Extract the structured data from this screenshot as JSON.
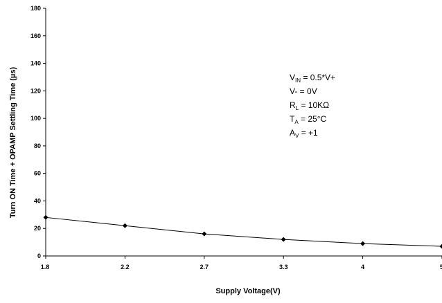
{
  "chart_data": {
    "type": "line",
    "x": [
      "1.8",
      "2.2",
      "2.7",
      "3.3",
      "4",
      "5"
    ],
    "series": [
      {
        "values": [
          28,
          22,
          16,
          12,
          9,
          7
        ]
      }
    ],
    "xlabel": "Supply Voltage(V)",
    "ylabel": "Turn ON Time + OPAMP Settling Time (µs)",
    "ylim": [
      0,
      180
    ],
    "yticks": [
      0,
      20,
      40,
      60,
      80,
      100,
      120,
      140,
      160,
      180
    ],
    "grid": false,
    "marker": "diamond",
    "annotations": [
      {
        "main": "V",
        "sub": "IN",
        "rest": " = 0.5*V+"
      },
      {
        "main": "V- = 0V",
        "sub": "",
        "rest": ""
      },
      {
        "main": "R",
        "sub": "L",
        "rest": " = 10KΩ"
      },
      {
        "main": "T",
        "sub": "A",
        "rest": " = 25°C"
      },
      {
        "main": "A",
        "sub": "V",
        "rest": " = +1"
      }
    ]
  }
}
